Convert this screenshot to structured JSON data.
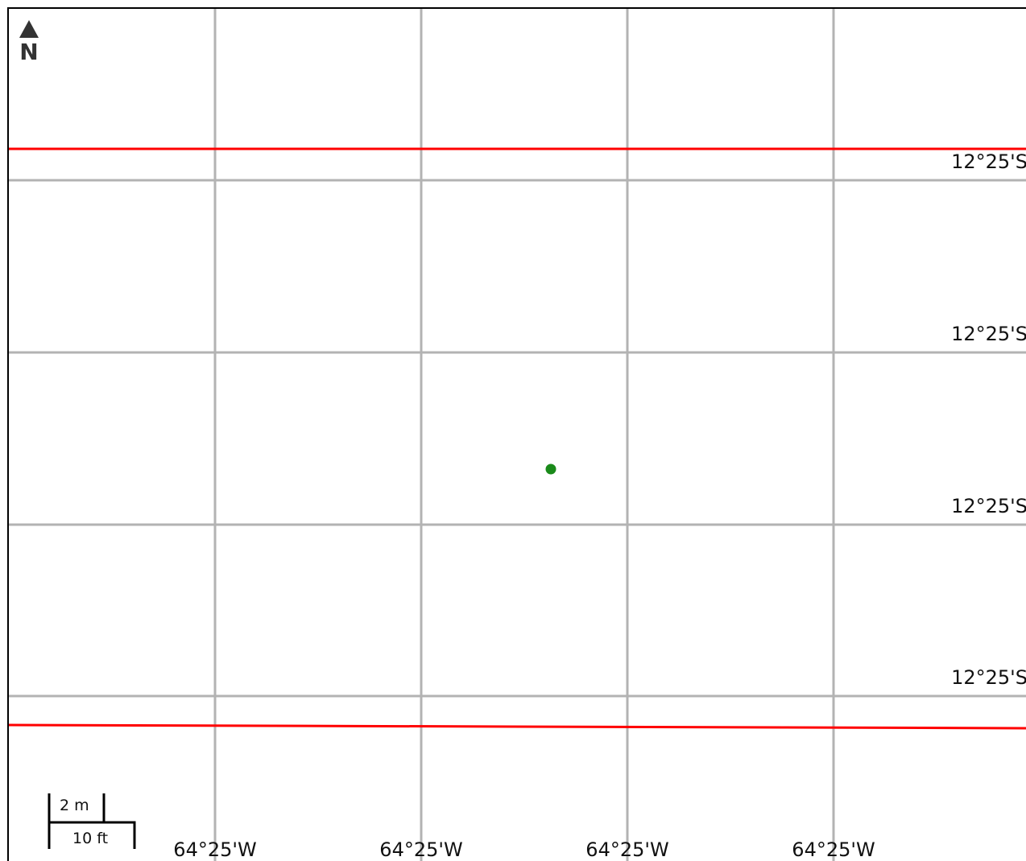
{
  "map": {
    "north_label": "N",
    "latitude_labels": [
      "12°25'S",
      "12°25'S",
      "12°25'S",
      "12°25'S"
    ],
    "longitude_labels": [
      "64°25'W",
      "64°25'W",
      "64°25'W",
      "64°25'W"
    ],
    "scale": {
      "metric_label": "2 m",
      "imperial_label": "10 ft"
    },
    "colors": {
      "grid": "#b3b3b3",
      "boundary": "#ff0000",
      "point": "#1a8a1a"
    },
    "point_marker": {
      "icon": "point-marker-icon"
    }
  }
}
